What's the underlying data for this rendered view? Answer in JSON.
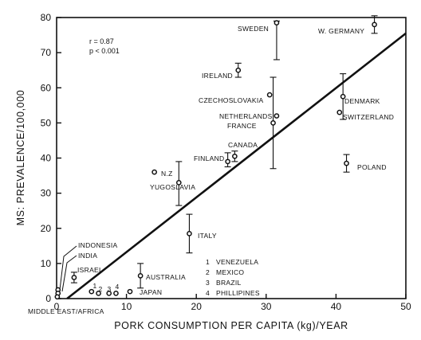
{
  "chart_data": {
    "type": "scatter",
    "xlabel": "PORK CONSUMPTION PER CAPITA (kg)/YEAR",
    "ylabel": "MS: PREVALENCE/100,000",
    "xlim": [
      0,
      50
    ],
    "ylim": [
      0,
      80
    ],
    "x_ticks": [
      0,
      10,
      20,
      30,
      40,
      50
    ],
    "y_ticks": [
      0,
      10,
      20,
      30,
      40,
      50,
      60,
      70,
      80
    ],
    "grid": false,
    "stats": [
      "r = 0.87",
      "p < 0.001"
    ],
    "regression_line": {
      "x": [
        1.5,
        50
      ],
      "y": [
        0,
        75.5
      ]
    },
    "points": [
      {
        "label": "SWEDEN",
        "x": 31.5,
        "y": 78.5,
        "err": [
          68,
          79
        ]
      },
      {
        "label": "W. GERMANY",
        "x": 45.5,
        "y": 78,
        "err": [
          75.5,
          80.5
        ]
      },
      {
        "label": "IRELAND",
        "x": 26,
        "y": 65,
        "err": [
          63,
          67
        ]
      },
      {
        "label": "CZECHOSLOVAKIA",
        "x": 30.5,
        "y": 58,
        "err": null
      },
      {
        "label": "DENMARK",
        "x": 41,
        "y": 57.5,
        "err": [
          51,
          64
        ]
      },
      {
        "label": "SWITZERLAND",
        "x": 40.5,
        "y": 53,
        "err": null
      },
      {
        "label": "NETHERLANDS",
        "x": 31.5,
        "y": 52,
        "err": null
      },
      {
        "label": "FRANCE",
        "x": 31,
        "y": 50,
        "err": [
          37,
          63
        ]
      },
      {
        "label": "CANADA",
        "x": 25.5,
        "y": 40.5,
        "err": [
          39,
          42
        ]
      },
      {
        "label": "FINLAND",
        "x": 24.5,
        "y": 39,
        "err": [
          37.5,
          41.5
        ]
      },
      {
        "label": "POLAND",
        "x": 41.5,
        "y": 38.5,
        "err": [
          36,
          41
        ]
      },
      {
        "label": "N.Z",
        "x": 14,
        "y": 36,
        "err": null
      },
      {
        "label": "YUGOSLAVIA",
        "x": 17.5,
        "y": 33,
        "err": [
          26.5,
          39
        ]
      },
      {
        "label": "ITALY",
        "x": 19,
        "y": 18.5,
        "err": [
          13,
          24
        ]
      },
      {
        "label": "ISRAEL",
        "x": 2.5,
        "y": 6,
        "err": [
          4.5,
          7.5
        ]
      },
      {
        "label": "AUSTRALIA",
        "x": 12,
        "y": 6.5,
        "err": [
          3,
          10
        ]
      },
      {
        "label": "JAPAN",
        "x": 10.5,
        "y": 2,
        "err": null
      },
      {
        "label": "1",
        "x": 5,
        "y": 2,
        "err": null
      },
      {
        "label": "2",
        "x": 6,
        "y": 1.5,
        "err": null
      },
      {
        "label": "3",
        "x": 7.5,
        "y": 1.5,
        "err": null
      },
      {
        "label": "4",
        "x": 8.5,
        "y": 1.5,
        "err": null
      },
      {
        "label": "INDONESIA",
        "x": 0.2,
        "y": 2.5,
        "err": null
      },
      {
        "label": "INDIA",
        "x": 0.2,
        "y": 1.5,
        "err": null
      },
      {
        "label": "MIDDLE EAST/AFRICA",
        "x": 0.1,
        "y": 0.5,
        "err": null
      }
    ],
    "numbered_legend": [
      {
        "num": "1",
        "name": "VENEZUELA"
      },
      {
        "num": "2",
        "name": "MEXICO"
      },
      {
        "num": "3",
        "name": "BRAZIL"
      },
      {
        "num": "4",
        "name": "PHILLIPINES"
      }
    ],
    "colors": {
      "ink": "#111111",
      "background": "#ffffff"
    }
  }
}
